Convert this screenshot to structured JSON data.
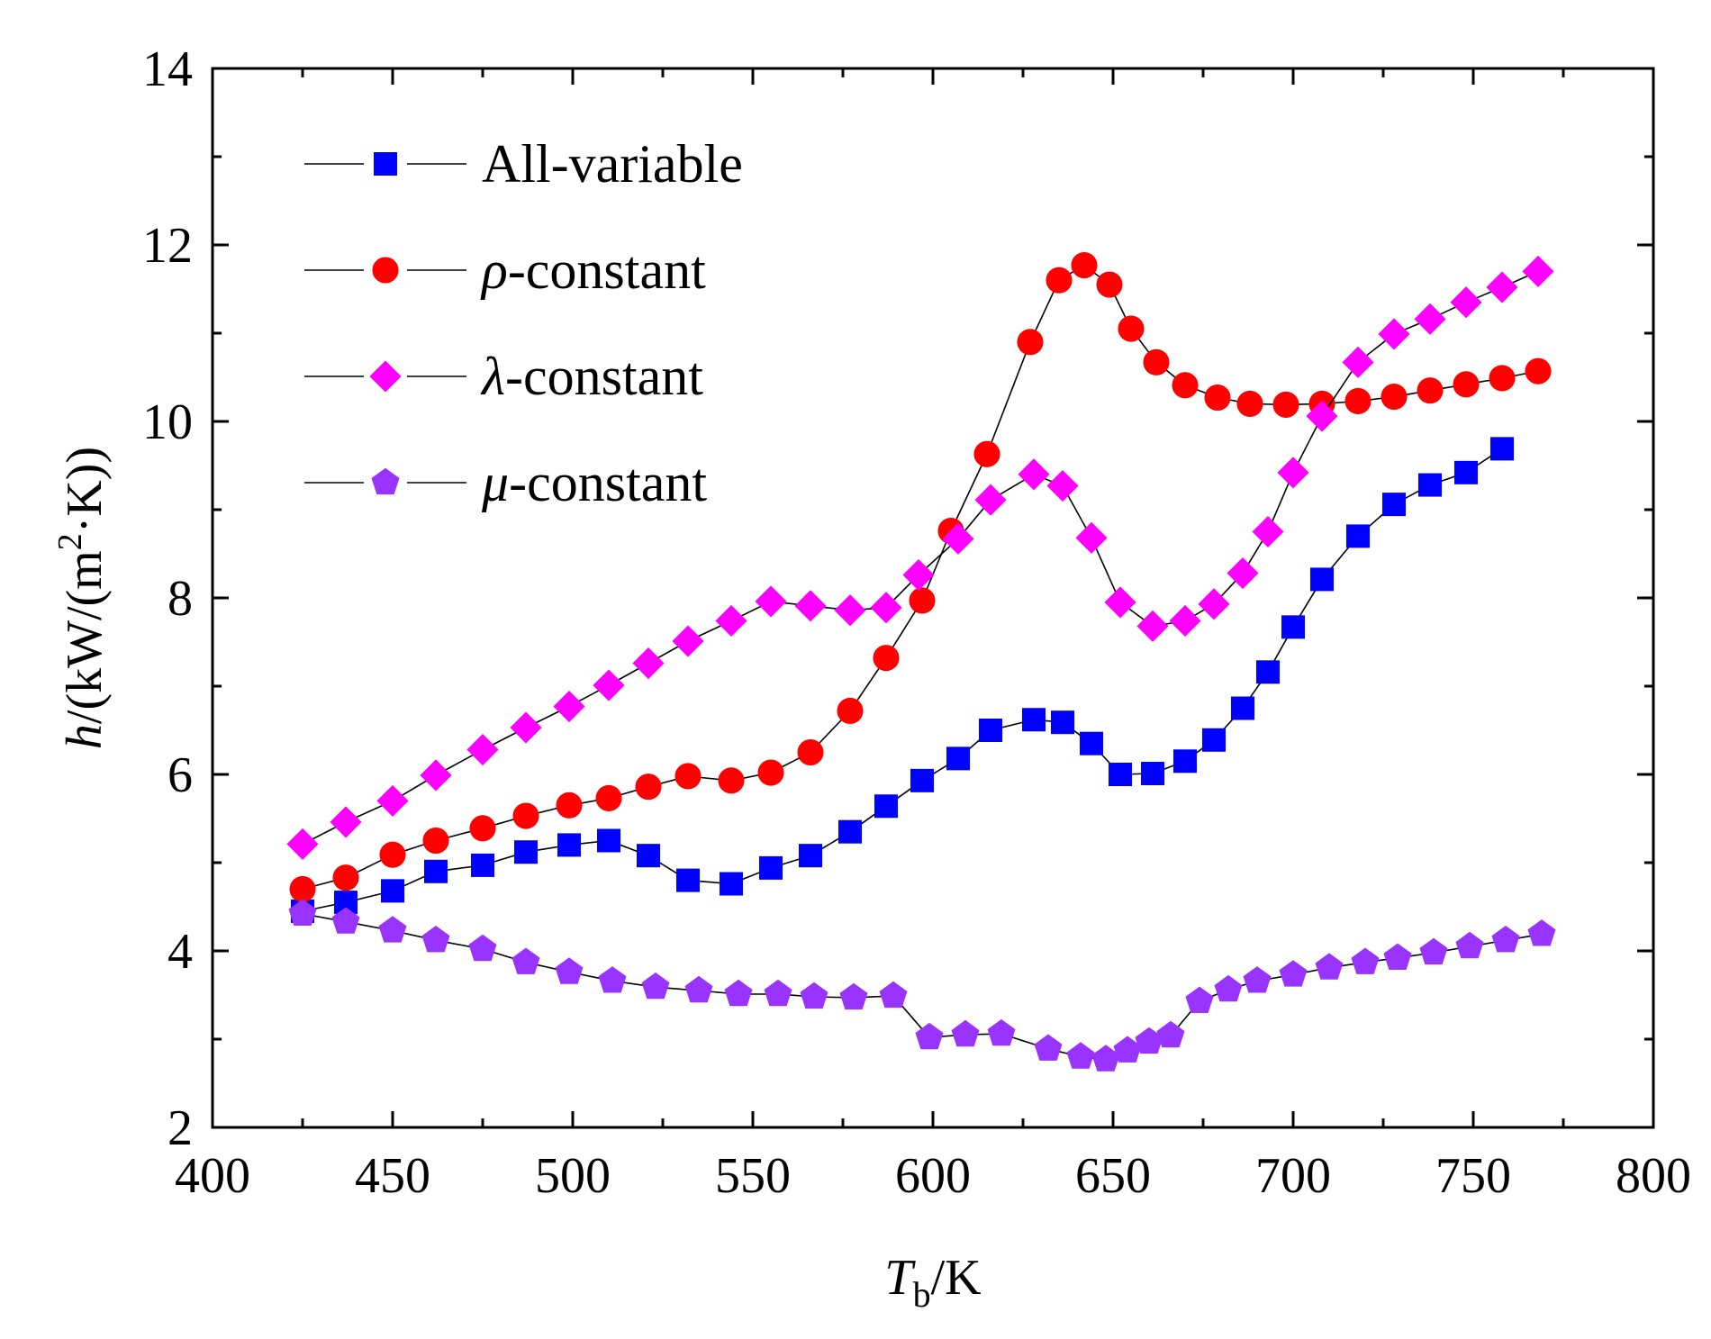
{
  "chart_data": {
    "type": "line",
    "title": "",
    "xlabel": {
      "main": "T",
      "sub": "b",
      "unit": "/K"
    },
    "ylabel": {
      "main": "h",
      "unit_pre": "/(kW/(m",
      "sup": "2",
      "unit_post": "·K))"
    },
    "xlim": [
      400,
      800
    ],
    "ylim": [
      2,
      14
    ],
    "x_ticks": [
      400,
      450,
      500,
      550,
      600,
      650,
      700,
      750,
      800
    ],
    "y_ticks": [
      2,
      4,
      6,
      8,
      10,
      12,
      14
    ],
    "grid": false,
    "legend_position": "top-left",
    "series": [
      {
        "name": "All-variable",
        "legend_symbol": "",
        "legend_suffix": "All-variable",
        "marker": "square",
        "color": "#0000ff",
        "x": [
          425,
          437,
          450,
          462,
          475,
          487,
          499,
          510,
          521,
          532,
          544,
          555,
          566,
          577,
          587,
          597,
          607,
          616,
          628,
          636,
          644,
          652,
          661,
          670,
          678,
          686,
          693,
          700,
          708,
          718,
          728,
          738,
          748,
          758
        ],
        "y": [
          4.45,
          4.55,
          4.68,
          4.9,
          4.97,
          5.12,
          5.2,
          5.25,
          5.08,
          4.8,
          4.76,
          4.94,
          5.08,
          5.35,
          5.64,
          5.93,
          6.18,
          6.5,
          6.62,
          6.59,
          6.35,
          6.0,
          6.01,
          6.15,
          6.39,
          6.75,
          7.16,
          7.67,
          8.21,
          8.7,
          9.06,
          9.28,
          9.42,
          9.69
        ]
      },
      {
        "name": "ρ-constant",
        "legend_symbol": "ρ",
        "legend_suffix": "-constant",
        "marker": "circle",
        "color": "#ff0000",
        "x": [
          425,
          437,
          450,
          462,
          475,
          487,
          499,
          510,
          521,
          532,
          544,
          555,
          566,
          577,
          587,
          597,
          605,
          615,
          627,
          635,
          642,
          649,
          655,
          662,
          670,
          679,
          688,
          698,
          708,
          718,
          728,
          738,
          748,
          758,
          768
        ],
        "y": [
          4.7,
          4.83,
          5.09,
          5.25,
          5.39,
          5.53,
          5.65,
          5.73,
          5.86,
          5.98,
          5.93,
          6.02,
          6.25,
          6.72,
          7.32,
          7.97,
          8.76,
          9.63,
          10.9,
          11.6,
          11.77,
          11.55,
          11.05,
          10.67,
          10.41,
          10.27,
          10.2,
          10.19,
          10.2,
          10.23,
          10.28,
          10.35,
          10.42,
          10.49,
          10.57
        ]
      },
      {
        "name": "λ-constant",
        "legend_symbol": "λ",
        "legend_suffix": "-constant",
        "marker": "diamond",
        "color": "#ff00ff",
        "x": [
          425,
          437,
          450,
          462,
          475,
          487,
          499,
          510,
          521,
          532,
          544,
          555,
          566,
          577,
          587,
          596,
          607,
          616,
          628,
          636,
          644,
          652,
          661,
          670,
          678,
          686,
          693,
          700,
          708,
          718,
          728,
          738,
          748,
          758,
          768
        ],
        "y": [
          5.21,
          5.46,
          5.7,
          5.99,
          6.28,
          6.53,
          6.77,
          7.01,
          7.26,
          7.51,
          7.74,
          7.96,
          7.91,
          7.86,
          7.89,
          8.26,
          8.67,
          9.11,
          9.4,
          9.27,
          8.68,
          7.95,
          7.68,
          7.74,
          7.93,
          8.28,
          8.75,
          9.42,
          10.06,
          10.67,
          10.99,
          11.16,
          11.35,
          11.52,
          11.7
        ]
      },
      {
        "name": "μ-constant",
        "legend_symbol": "μ",
        "legend_suffix": "-constant",
        "marker": "pentagon",
        "color": "#9933ff",
        "x": [
          425,
          437,
          450,
          462,
          475,
          487,
          499,
          511,
          523,
          535,
          546,
          557,
          567,
          578,
          589,
          599,
          609,
          619,
          632,
          641,
          648,
          654,
          660,
          666,
          674,
          682,
          690,
          700,
          710,
          720,
          729,
          739,
          749,
          759,
          769
        ],
        "y": [
          4.42,
          4.33,
          4.23,
          4.12,
          4.02,
          3.87,
          3.76,
          3.66,
          3.59,
          3.55,
          3.51,
          3.51,
          3.48,
          3.47,
          3.49,
          3.02,
          3.05,
          3.06,
          2.89,
          2.8,
          2.77,
          2.87,
          2.97,
          3.04,
          3.43,
          3.56,
          3.66,
          3.73,
          3.81,
          3.87,
          3.92,
          3.98,
          4.05,
          4.12,
          4.19
        ]
      }
    ]
  }
}
